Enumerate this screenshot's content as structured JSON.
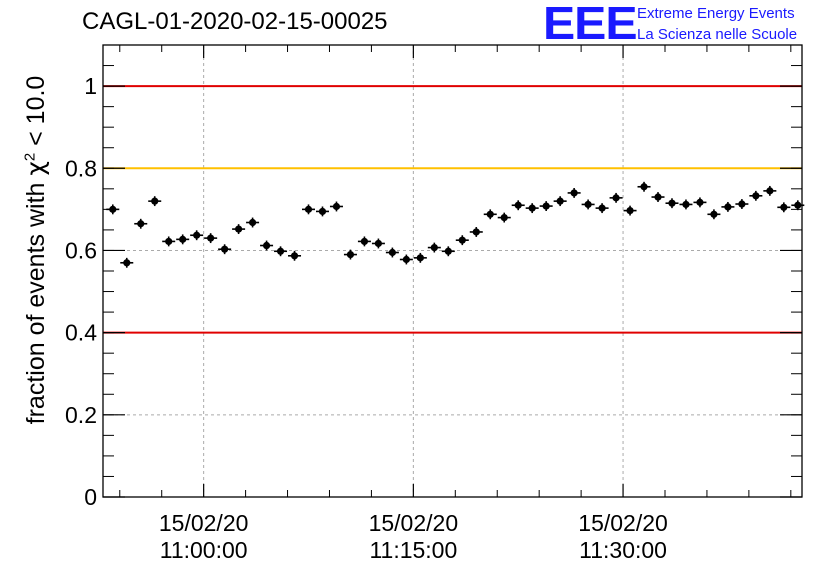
{
  "chart_data": {
    "type": "scatter",
    "title": "CAGL-01-2020-02-15-00025",
    "ylabel_prefix": "fraction of events with ",
    "ylabel_symbol": "χ",
    "ylabel_sup": "2",
    "ylabel_suffix": " < 10.0",
    "xlabel": "",
    "ylim": [
      0,
      1.1
    ],
    "xlim_minutes": [
      -7.2,
      42.8
    ],
    "x_axis_origin": "15/02/20 11:00:00",
    "x_tick_labels": [
      {
        "at": 0,
        "date": "15/02/20",
        "time": "11:00:00"
      },
      {
        "at": 15,
        "date": "15/02/20",
        "time": "11:15:00"
      },
      {
        "at": 30,
        "date": "15/02/20",
        "time": "11:30:00"
      }
    ],
    "y_ticks": [
      0,
      0.2,
      0.4,
      0.6,
      0.8,
      1
    ],
    "y_tick_labels": [
      "0",
      "0.2",
      "0.4",
      "0.6",
      "0.8",
      "1"
    ],
    "grid": true,
    "reference_lines": [
      {
        "y": 1.0,
        "color": "#e00000"
      },
      {
        "y": 0.8,
        "color": "#ffc000"
      },
      {
        "y": 0.4,
        "color": "#e00000"
      }
    ],
    "series": [
      {
        "marker_color": "#000000",
        "x_minutes": [
          -6.5,
          -5.5,
          -4.5,
          -3.5,
          -2.5,
          -1.5,
          -0.5,
          0.5,
          1.5,
          2.5,
          3.5,
          4.5,
          5.5,
          6.5,
          7.5,
          8.5,
          9.5,
          10.5,
          11.5,
          12.5,
          13.5,
          14.5,
          15.5,
          16.5,
          17.5,
          18.5,
          19.5,
          20.5,
          21.5,
          22.5,
          23.5,
          24.5,
          25.5,
          26.5,
          27.5,
          28.5,
          29.5,
          30.5,
          31.5,
          32.5,
          33.5,
          34.5,
          35.5,
          36.5,
          37.5,
          38.5,
          39.5,
          40.5,
          41.5,
          42.5
        ],
        "values": [
          0.7,
          0.57,
          0.665,
          0.72,
          0.622,
          0.627,
          0.637,
          0.63,
          0.603,
          0.652,
          0.668,
          0.612,
          0.598,
          0.587,
          0.7,
          0.695,
          0.707,
          0.59,
          0.622,
          0.617,
          0.595,
          0.578,
          0.582,
          0.607,
          0.598,
          0.625,
          0.645,
          0.688,
          0.68,
          0.71,
          0.703,
          0.708,
          0.72,
          0.74,
          0.712,
          0.703,
          0.728,
          0.697,
          0.755,
          0.73,
          0.715,
          0.712,
          0.717,
          0.688,
          0.706,
          0.713,
          0.733,
          0.745,
          0.705,
          0.71
        ],
        "errors": [
          0.012,
          0.012,
          0.012,
          0.012,
          0.012,
          0.012,
          0.012,
          0.012,
          0.012,
          0.012,
          0.012,
          0.012,
          0.012,
          0.012,
          0.012,
          0.012,
          0.012,
          0.012,
          0.012,
          0.012,
          0.012,
          0.012,
          0.012,
          0.012,
          0.012,
          0.012,
          0.012,
          0.012,
          0.012,
          0.012,
          0.012,
          0.012,
          0.012,
          0.012,
          0.012,
          0.012,
          0.012,
          0.012,
          0.012,
          0.012,
          0.012,
          0.012,
          0.012,
          0.012,
          0.012,
          0.012,
          0.012,
          0.012,
          0.012,
          0.012
        ]
      }
    ]
  },
  "logo": {
    "mark": "EEE",
    "line1": "Extreme Energy Events",
    "line2": "La Scienza nelle Scuole",
    "color": "#1a1aff"
  }
}
